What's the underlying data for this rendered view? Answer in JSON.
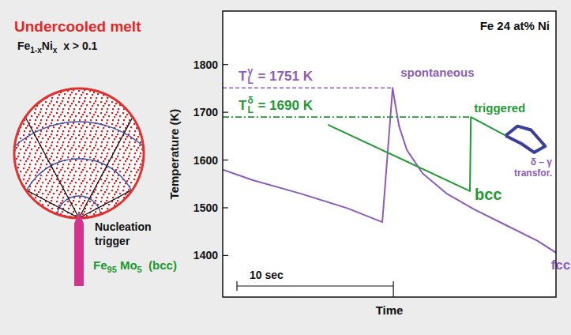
{
  "diagram": {
    "title": "Undercooled melt",
    "alloy": [
      {
        "text": "Fe"
      },
      {
        "text": "1-x",
        "sub": true
      },
      {
        "text": "Ni"
      },
      {
        "text": "x",
        "sub": true
      },
      {
        "text": "  x > 0.1"
      }
    ],
    "trigger_label": [
      "Nucleation",
      "trigger"
    ],
    "trigger_material": [
      {
        "text": "Fe"
      },
      {
        "text": "95",
        "sub": true
      },
      {
        "text": " Mo"
      },
      {
        "text": "5",
        "sub": true
      },
      {
        "text": "  (bcc)"
      }
    ]
  },
  "chart_data": {
    "type": "line",
    "title": "Fe 24 at% Ni",
    "x_label": "Time",
    "y_label": "Temperature (K)",
    "xlim": [
      0,
      21.3
    ],
    "ylim": [
      1313,
      1912
    ],
    "xticks": [],
    "yticks": [
      1400,
      1500,
      1600,
      1700,
      1800
    ],
    "tick_labels": "y",
    "grid": false,
    "scale_bar": {
      "label": "10 sec",
      "value": 10
    },
    "series": [
      {
        "name": "fcc",
        "annotation": "spontaneous",
        "color": "#8c5db8",
        "x": [
          0,
          1.92,
          4.95,
          7.98,
          10.2,
          10.86,
          11.01,
          11.27,
          11.77,
          12.78,
          14.3,
          16.06,
          18.08,
          20.1,
          21.3
        ],
        "values": [
          1580,
          1558,
          1530,
          1499,
          1470,
          1751,
          1720,
          1671,
          1621,
          1572,
          1530,
          1497,
          1464,
          1431,
          1406
        ],
        "liquidus": {
          "value": 1751,
          "symbol": "T",
          "sub": "L",
          "sup": "γ",
          "text": " = 1751 K",
          "line_style": "dashed"
        }
      },
      {
        "name": "bcc",
        "annotation": "triggered",
        "color": "#1f9a35",
        "x": [
          6.72,
          15.8,
          15.86,
          18.08
        ],
        "values": [
          1674,
          1535,
          1690,
          1651
        ],
        "liquidus": {
          "value": 1690,
          "symbol": "T",
          "sub": "L",
          "sup": "δ",
          "text": " = 1690 K",
          "line_style": "dashdot"
        }
      },
      {
        "name": "δ – γ transfor.",
        "color": "#3a3f9c",
        "x": [
          18.08,
          18.84,
          19.7,
          20.61,
          19.9,
          19.1,
          18.08
        ],
        "values": [
          1651,
          1671,
          1663,
          1629,
          1616,
          1634,
          1651
        ]
      }
    ]
  }
}
